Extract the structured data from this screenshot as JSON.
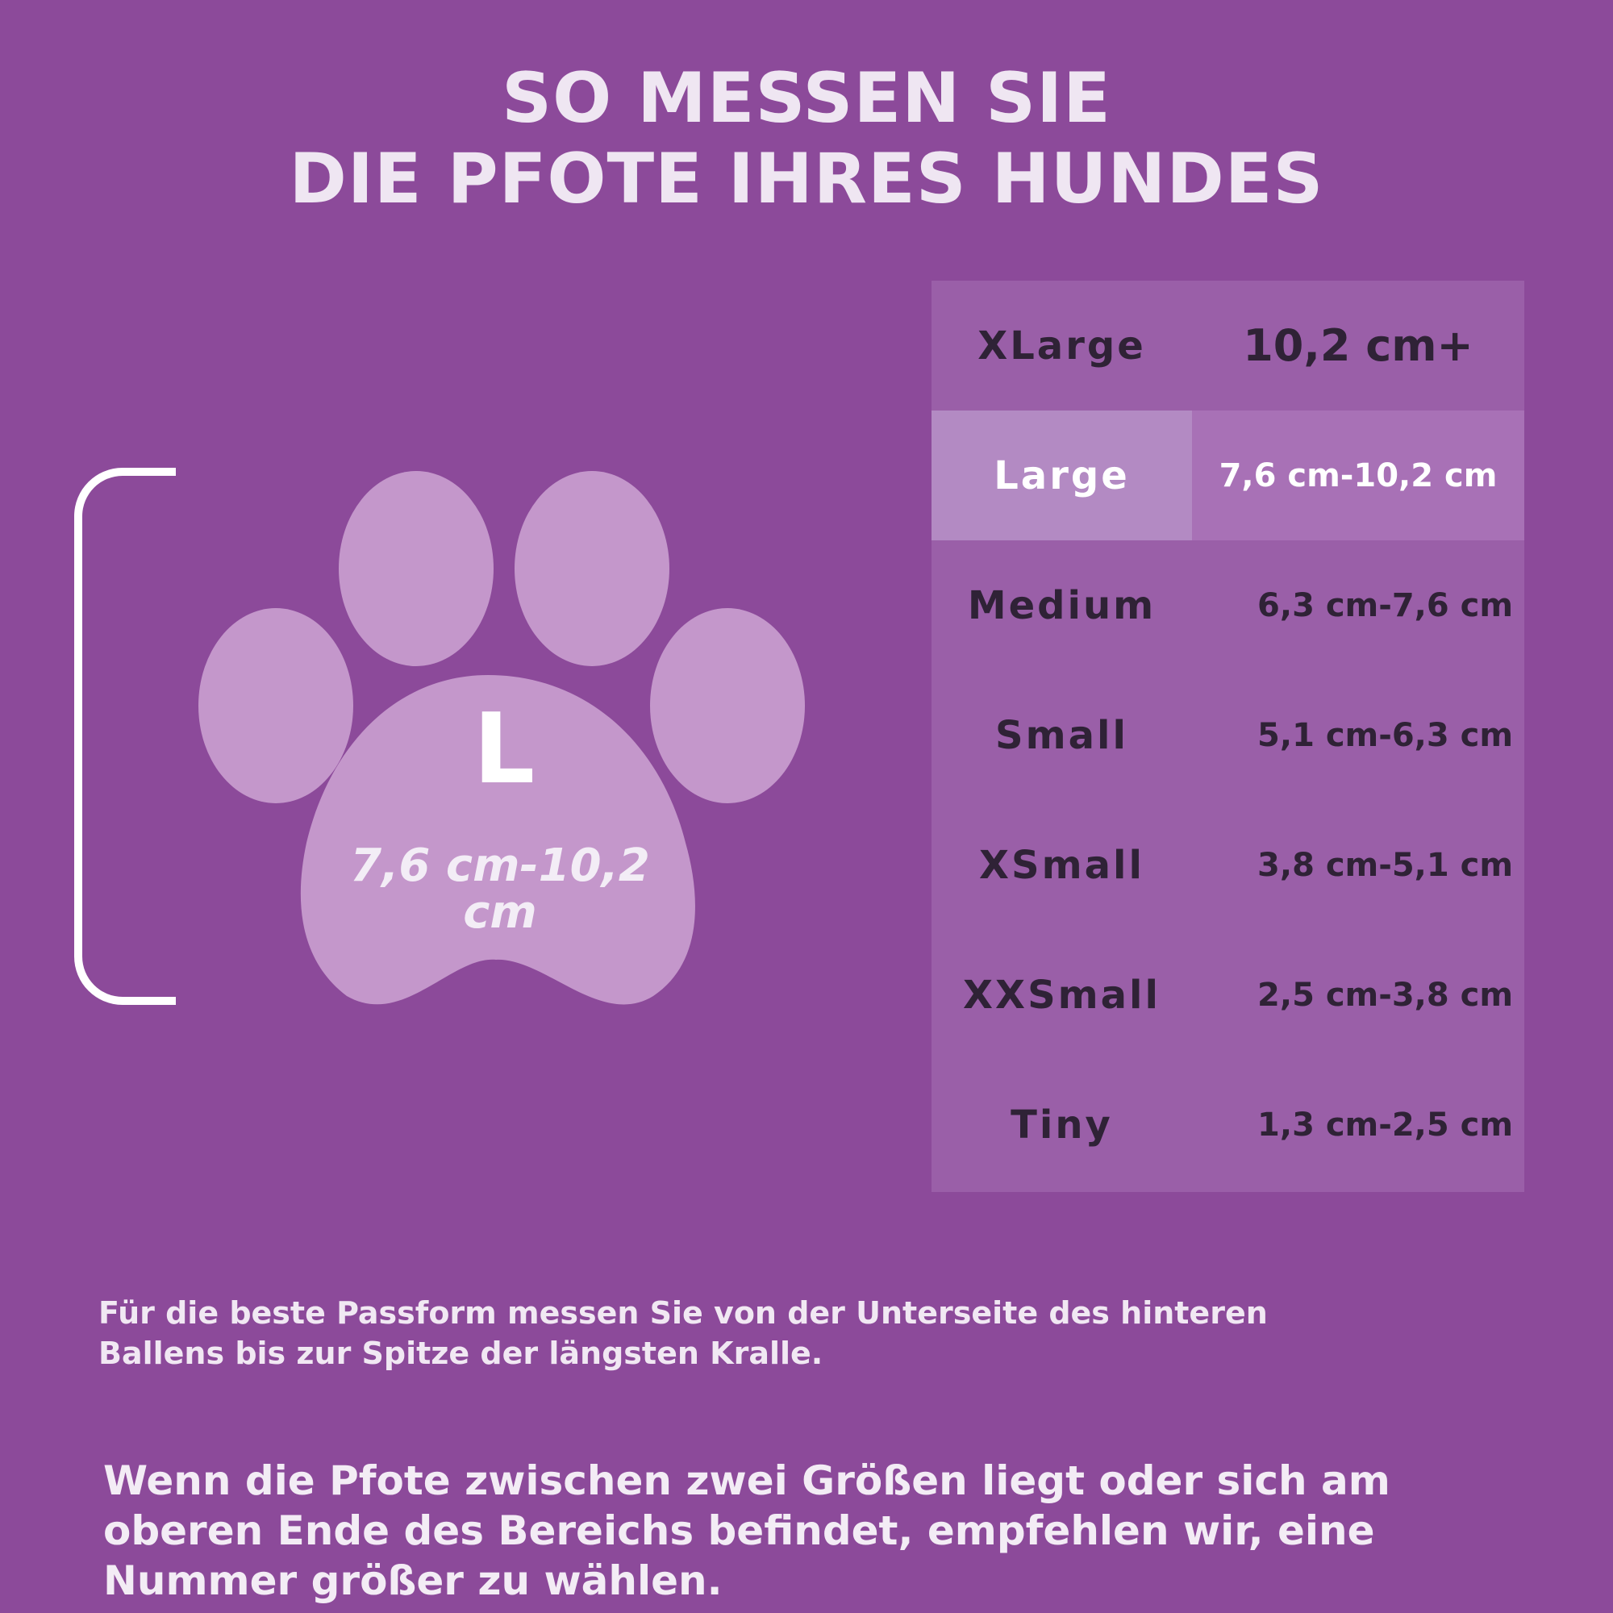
{
  "title": {
    "line1": "SO MESSEN SIE",
    "line2": "DIE PFOTE IHRES HUNDES"
  },
  "paw": {
    "letter": "L",
    "range": "7,6 cm-10,2 cm"
  },
  "size_table": {
    "rows": [
      {
        "size": "XLarge",
        "range": "10,2 cm+"
      },
      {
        "size": "Large",
        "range": "7,6 cm-10,2 cm"
      },
      {
        "size": "Medium",
        "range": "6,3 cm-7,6 cm"
      },
      {
        "size": "Small",
        "range": "5,1 cm-6,3 cm"
      },
      {
        "size": "XSmall",
        "range": "3,8 cm-5,1 cm"
      },
      {
        "size": "XXSmall",
        "range": "2,5 cm-3,8 cm"
      },
      {
        "size": "Tiny",
        "range": "1,3 cm-2,5 cm"
      }
    ]
  },
  "note": "Für die beste Passform messen Sie von der Unterseite des hinteren Ballens bis zur Spitze der längsten Kralle.",
  "footer": "Wenn die Pfote zwischen zwei Größen liegt oder sich am oberen Ende des Bereichs befindet, empfehlen wir, eine Nummer größer zu wählen.",
  "colors": {
    "background": "#8c4a9a",
    "paw": "#c497cb",
    "table": "#9a5fa8",
    "highlight": "#b38ac3"
  }
}
